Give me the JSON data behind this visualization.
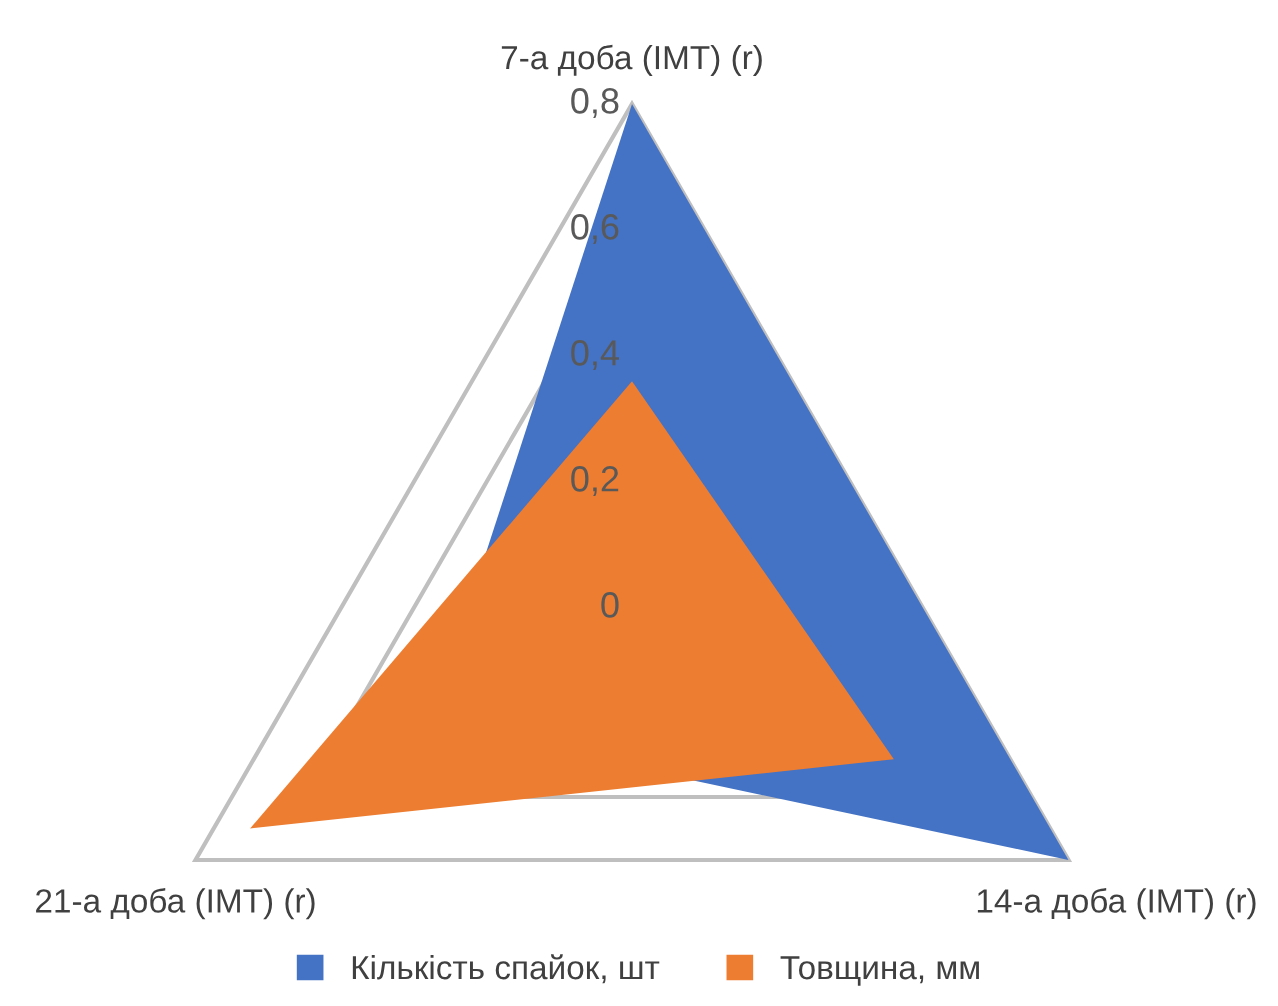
{
  "chart_data": {
    "type": "radar",
    "categories": [
      "7-а доба (IMT) (r)",
      "14-а доба (IMT) (r)",
      "21-а доба (IMT) (r)"
    ],
    "series": [
      {
        "name": "Кількість спайок, шт",
        "color": "#4472c4",
        "values": [
          0.8,
          0.8,
          0.37
        ]
      },
      {
        "name": "Товщина, мм",
        "color": "#ed7d31",
        "values": [
          0.36,
          0.48,
          0.7
        ]
      }
    ],
    "ylim": [
      0,
      0.8
    ],
    "yticks": [
      {
        "value": 0,
        "label": "0"
      },
      {
        "value": 0.2,
        "label": "0,2"
      },
      {
        "value": 0.4,
        "label": "0,4"
      },
      {
        "value": 0.6,
        "label": "0,6"
      },
      {
        "value": 0.8,
        "label": "0,8"
      }
    ],
    "grid": true,
    "legend": "bottom"
  }
}
